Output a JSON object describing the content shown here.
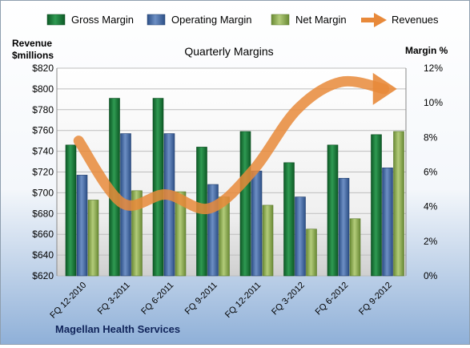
{
  "chart_data": {
    "type": "bar",
    "title": "Quarterly Margins",
    "footer": "Magellan Health Services",
    "categories": [
      "FQ 12-2010",
      "FQ 3-2011",
      "FQ 6-2011",
      "FQ 9-2011",
      "FQ 12-2011",
      "FQ 3-2012",
      "FQ 6-2012",
      "FQ 9-2012"
    ],
    "left_axis": {
      "label_line1": "Revenue",
      "label_line2": "$millions",
      "min": 620,
      "max": 820,
      "ticks": [
        "$820",
        "$800",
        "$780",
        "$760",
        "$740",
        "$720",
        "$700",
        "$680",
        "$660",
        "$640",
        "$620"
      ]
    },
    "right_axis": {
      "label": "Margin %",
      "min": 0,
      "max": 12,
      "ticks": [
        "12%",
        "10%",
        "8%",
        "6%",
        "4%",
        "2%",
        "0%"
      ]
    },
    "series": [
      {
        "name": "Gross Margin",
        "axis": "left",
        "color": "#1e7a3c",
        "values": [
          746,
          791,
          791,
          744,
          759,
          729,
          746,
          756
        ]
      },
      {
        "name": "Operating Margin",
        "axis": "left",
        "color": "#4a6fa8",
        "values": [
          717,
          757,
          757,
          708,
          721,
          696,
          714,
          724
        ]
      },
      {
        "name": "Net Margin",
        "axis": "left",
        "color": "#8fae55",
        "values": [
          693,
          702,
          701,
          696,
          688,
          665,
          675,
          759
        ]
      },
      {
        "name": "Revenues",
        "axis": "right",
        "type": "line",
        "color": "#e8893a",
        "values": [
          7.8,
          4.2,
          4.7,
          3.9,
          6.1,
          9.6,
          11.2,
          10.8
        ]
      }
    ],
    "grid": true,
    "legend_position": "top"
  }
}
